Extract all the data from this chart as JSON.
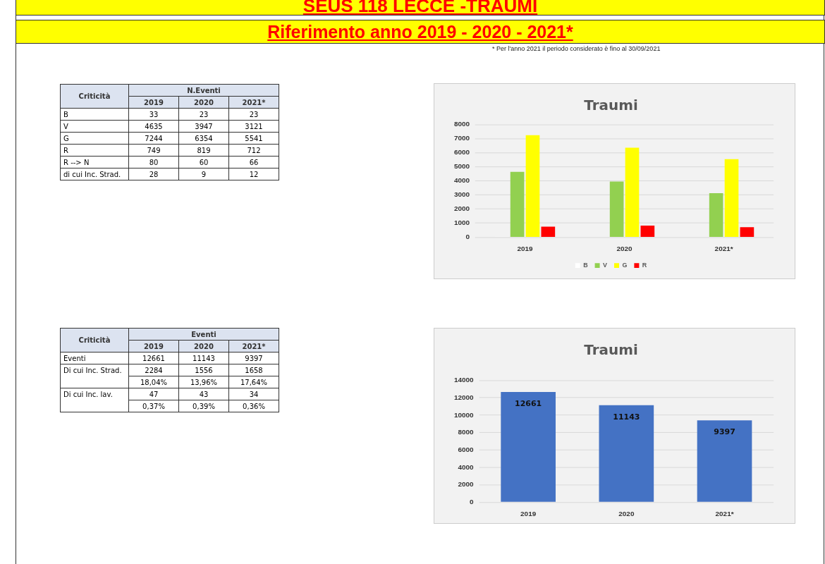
{
  "chart_data": [
    {
      "type": "other",
      "title": "SEUS 118 LECCE -TRAUMI",
      "subtitle": "Riferimento anno 2019 - 2020 - 2021*",
      "annotations": [
        "* Per l'anno 2021 il periodo considerato è fino al 30/09/2021"
      ]
    },
    {
      "type": "heatmap",
      "data_labels": true,
      "xlabel": "N.Eventi",
      "ylabel": "Criticità",
      "categories": [
        "2019",
        "2020",
        "2021*"
      ],
      "y_categories": [
        "B",
        "V",
        "G",
        "R",
        "R --> N",
        "di cui Inc. Strad."
      ],
      "cells": [
        [
          33,
          23,
          23
        ],
        [
          4635,
          3947,
          3121
        ],
        [
          7244,
          6354,
          5541
        ],
        [
          749,
          819,
          712
        ],
        [
          80,
          60,
          66
        ],
        [
          28,
          9,
          12
        ]
      ]
    },
    {
      "type": "bar",
      "title": "Traumi",
      "categories": [
        "2019",
        "2020",
        "2021*"
      ],
      "series": [
        {
          "name": "B",
          "color": "#ffffff",
          "values": [
            33,
            23,
            23
          ]
        },
        {
          "name": "V",
          "color": "#92d050",
          "values": [
            4635,
            3947,
            3121
          ]
        },
        {
          "name": "G",
          "color": "#ffff00",
          "values": [
            7244,
            6354,
            5541
          ]
        },
        {
          "name": "R",
          "color": "#ff0000",
          "values": [
            749,
            819,
            712
          ]
        }
      ],
      "ylim": [
        0,
        8000
      ],
      "yticks": [
        0,
        1000,
        2000,
        3000,
        4000,
        5000,
        6000,
        7000,
        8000
      ],
      "grid": "y",
      "legend": "bottom"
    },
    {
      "type": "heatmap",
      "data_labels": true,
      "xlabel": "Eventi",
      "ylabel": "Criticità",
      "categories": [
        "2019",
        "2020",
        "2021*"
      ],
      "y_categories": [
        "Eventi",
        "Di cui Inc. Strad.",
        null,
        "Di cui Inc. lav.",
        null
      ],
      "cells": [
        [
          12661,
          11143,
          9397
        ],
        [
          2284,
          1556,
          1658
        ],
        [
          18.04,
          13.96,
          17.64
        ],
        [
          47,
          43,
          34
        ],
        [
          0.37,
          0.39,
          0.36
        ]
      ],
      "cell_labels": [
        [
          "12661",
          "11143",
          "9397"
        ],
        [
          "2284",
          "1556",
          "1658"
        ],
        [
          "18,04%",
          "13,96%",
          "17,64%"
        ],
        [
          "47",
          "43",
          "34"
        ],
        [
          "0,37%",
          "0,39%",
          "0,36%"
        ]
      ]
    },
    {
      "type": "bar",
      "title": "Traumi",
      "categories": [
        "2019",
        "2020",
        "2021*"
      ],
      "values": [
        12661,
        11143,
        9397
      ],
      "color": "#4472c4",
      "ylim": [
        0,
        14000
      ],
      "yticks": [
        0,
        2000,
        4000,
        6000,
        8000,
        10000,
        12000,
        14000
      ],
      "grid": "y",
      "data_labels": true
    }
  ]
}
